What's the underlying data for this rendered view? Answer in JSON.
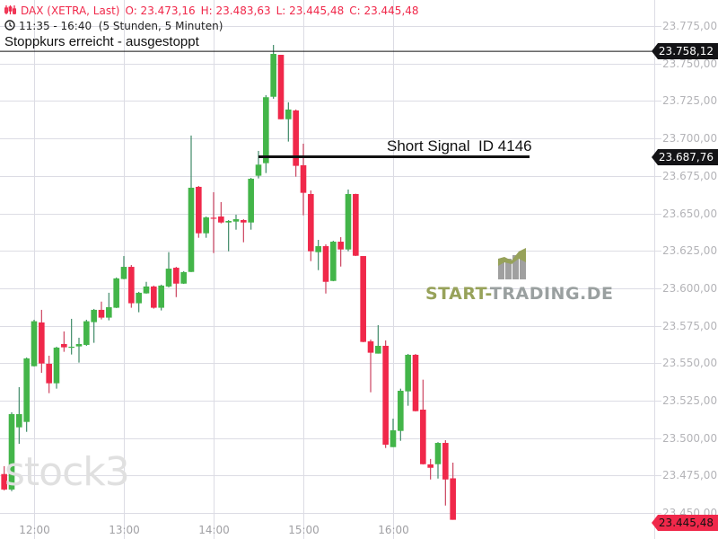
{
  "header": {
    "symbol": "DAX (XETRA, Last)",
    "open": "O: 23.473,16",
    "high": "H: 23.483,63",
    "low": "L: 23.445,48",
    "close": "C: 23.445,48",
    "time_range": "11:35 - 16:40",
    "interval": "(5 Stunden, 5 Minuten)"
  },
  "annotations": {
    "stop": {
      "label": "Stoppkurs erreicht - ausgestoppt",
      "price": 23758.12,
      "price_label": "23.758,12"
    },
    "signal": {
      "label": "Short Signal  ID 4146",
      "price": 23687.76,
      "price_label": "23.687,76"
    },
    "last": {
      "price": 23445.48,
      "price_label": "23.445,48"
    }
  },
  "logos": {
    "stock3": "stock3",
    "start_trading_a": "START-",
    "start_trading_b": "TRADING.DE"
  },
  "colors": {
    "up": "#43b549",
    "down": "#f0284a",
    "up_wick": "#3f8a68",
    "down_wick": "#cc4460",
    "grid": "#dcdce4",
    "text_axis": "#b4b4b8",
    "tag_dark": "#131316",
    "tag_red": "#f0284a"
  },
  "chart_data": {
    "type": "candlestick",
    "title": "",
    "interval": "5 min",
    "ylim": [
      23450,
      23775
    ],
    "yticks": [
      "23.775,00",
      "23.750,00",
      "23.725,00",
      "23.700,00",
      "23.675,00",
      "23.650,00",
      "23.625,00",
      "23.600,00",
      "23.575,00",
      "23.550,00",
      "23.525,00",
      "23.500,00",
      "23.475,00",
      "23.450,00"
    ],
    "ytick_values": [
      23775,
      23750,
      23725,
      23700,
      23675,
      23650,
      23625,
      23600,
      23575,
      23550,
      23525,
      23500,
      23475,
      23450
    ],
    "xticks": [
      "12:00",
      "13:00",
      "14:00",
      "15:00",
      "16:00"
    ],
    "grid": true,
    "candles": [
      {
        "t": "11:40",
        "o": 23476.0,
        "h": 23481.3,
        "l": 23465.1,
        "c": 23465.7
      },
      {
        "t": "11:45",
        "o": 23465.7,
        "h": 23517.2,
        "l": 23464.6,
        "c": 23516.0
      },
      {
        "t": "11:50",
        "o": 23507.2,
        "h": 23534.0,
        "l": 23496.2,
        "c": 23516.0
      },
      {
        "t": "11:55",
        "o": 23510.8,
        "h": 23553.8,
        "l": 23504.2,
        "c": 23553.2
      },
      {
        "t": "12:00",
        "o": 23548.0,
        "h": 23579.0,
        "l": 23547.8,
        "c": 23578.0
      },
      {
        "t": "12:05",
        "o": 23577.2,
        "h": 23585.6,
        "l": 23543.6,
        "c": 23549.8
      },
      {
        "t": "12:10",
        "o": 23549.6,
        "h": 23555.0,
        "l": 23530.0,
        "c": 23536.6
      },
      {
        "t": "12:15",
        "o": 23536.6,
        "h": 23561.0,
        "l": 23533.0,
        "c": 23560.4
      },
      {
        "t": "12:20",
        "o": 23562.8,
        "h": 23571.2,
        "l": 23557.6,
        "c": 23560.6
      },
      {
        "t": "12:25",
        "o": 23560.6,
        "h": 23579.6,
        "l": 23555.8,
        "c": 23561.0
      },
      {
        "t": "12:30",
        "o": 23561.2,
        "h": 23567.0,
        "l": 23550.4,
        "c": 23562.8
      },
      {
        "t": "12:35",
        "o": 23562.2,
        "h": 23579.0,
        "l": 23561.6,
        "c": 23578.0
      },
      {
        "t": "12:40",
        "o": 23577.4,
        "h": 23586.2,
        "l": 23563.6,
        "c": 23585.6
      },
      {
        "t": "12:45",
        "o": 23585.6,
        "h": 23591.1,
        "l": 23579.2,
        "c": 23580.4
      },
      {
        "t": "12:50",
        "o": 23580.4,
        "h": 23597.0,
        "l": 23578.6,
        "c": 23587.4
      },
      {
        "t": "12:55",
        "o": 23587.0,
        "h": 23607.2,
        "l": 23586.8,
        "c": 23606.6
      },
      {
        "t": "13:00",
        "o": 23606.2,
        "h": 23621.5,
        "l": 23606.0,
        "c": 23614.3
      },
      {
        "t": "13:05",
        "o": 23614.3,
        "h": 23615.5,
        "l": 23587.0,
        "c": 23590.0
      },
      {
        "t": "13:10",
        "o": 23590.0,
        "h": 23597.6,
        "l": 23584.0,
        "c": 23597.0
      },
      {
        "t": "13:15",
        "o": 23596.6,
        "h": 23604.3,
        "l": 23596.4,
        "c": 23601.2
      },
      {
        "t": "13:20",
        "o": 23601.2,
        "h": 23601.8,
        "l": 23586.4,
        "c": 23587.0
      },
      {
        "t": "13:25",
        "o": 23587.0,
        "h": 23602.4,
        "l": 23585.2,
        "c": 23601.8
      },
      {
        "t": "13:30",
        "o": 23601.2,
        "h": 23624.1,
        "l": 23600.6,
        "c": 23613.1
      },
      {
        "t": "13:35",
        "o": 23613.7,
        "h": 23614.3,
        "l": 23594.1,
        "c": 23603.1
      },
      {
        "t": "13:40",
        "o": 23603.1,
        "h": 23611.4,
        "l": 23602.9,
        "c": 23610.8
      },
      {
        "t": "13:45",
        "o": 23610.9,
        "h": 23701.9,
        "l": 23610.8,
        "c": 23667.1
      },
      {
        "t": "13:50",
        "o": 23667.7,
        "h": 23668.3,
        "l": 23633.7,
        "c": 23636.7
      },
      {
        "t": "13:55",
        "o": 23636.7,
        "h": 23647.9,
        "l": 23633.7,
        "c": 23647.3
      },
      {
        "t": "14:00",
        "o": 23647.1,
        "h": 23664.1,
        "l": 23623.5,
        "c": 23646.9
      },
      {
        "t": "14:05",
        "o": 23647.9,
        "h": 23657.5,
        "l": 23643.3,
        "c": 23643.9
      },
      {
        "t": "14:10",
        "o": 23643.9,
        "h": 23645.5,
        "l": 23624.7,
        "c": 23644.9
      },
      {
        "t": "14:15",
        "o": 23644.5,
        "h": 23649.1,
        "l": 23639.1,
        "c": 23646.1
      },
      {
        "t": "14:20",
        "o": 23645.5,
        "h": 23646.1,
        "l": 23630.7,
        "c": 23643.9
      },
      {
        "t": "14:25",
        "o": 23643.9,
        "h": 23673.7,
        "l": 23639.1,
        "c": 23673.1
      },
      {
        "t": "14:30",
        "o": 23675.1,
        "h": 23691.7,
        "l": 23673.3,
        "c": 23682.5
      },
      {
        "t": "14:35",
        "o": 23683.5,
        "h": 23728.9,
        "l": 23676.9,
        "c": 23727.5
      },
      {
        "t": "14:40",
        "o": 23727.8,
        "h": 23762.4,
        "l": 23726.5,
        "c": 23756.4
      },
      {
        "t": "14:45",
        "o": 23755.8,
        "h": 23755.8,
        "l": 23712.8,
        "c": 23712.8
      },
      {
        "t": "14:50",
        "o": 23712.8,
        "h": 23724.1,
        "l": 23697.9,
        "c": 23719.3
      },
      {
        "t": "14:55",
        "o": 23718.7,
        "h": 23719.3,
        "l": 23674.5,
        "c": 23681.7
      },
      {
        "t": "15:00",
        "o": 23682.1,
        "h": 23696.5,
        "l": 23648.7,
        "c": 23663.7
      },
      {
        "t": "15:05",
        "o": 23662.9,
        "h": 23665.3,
        "l": 23618.1,
        "c": 23624.7
      },
      {
        "t": "15:10",
        "o": 23624.1,
        "h": 23632.3,
        "l": 23612.1,
        "c": 23628.1
      },
      {
        "t": "15:15",
        "o": 23628.1,
        "h": 23629.3,
        "l": 23596.5,
        "c": 23604.3
      },
      {
        "t": "15:20",
        "o": 23604.9,
        "h": 23631.7,
        "l": 23604.7,
        "c": 23631.1
      },
      {
        "t": "15:25",
        "o": 23631.1,
        "h": 23634.1,
        "l": 23614.5,
        "c": 23625.9
      },
      {
        "t": "15:30",
        "o": 23625.9,
        "h": 23665.9,
        "l": 23624.7,
        "c": 23662.9
      },
      {
        "t": "15:35",
        "o": 23662.9,
        "h": 23663.1,
        "l": 23621.5,
        "c": 23621.7
      },
      {
        "t": "15:40",
        "o": 23621.5,
        "h": 23621.5,
        "l": 23564.0,
        "c": 23564.2
      },
      {
        "t": "15:45",
        "o": 23564.6,
        "h": 23565.8,
        "l": 23530.6,
        "c": 23557.0
      },
      {
        "t": "15:50",
        "o": 23556.4,
        "h": 23575.4,
        "l": 23556.4,
        "c": 23561.6
      },
      {
        "t": "15:55",
        "o": 23561.6,
        "h": 23565.2,
        "l": 23493.4,
        "c": 23495.6
      },
      {
        "t": "16:00",
        "o": 23494.0,
        "h": 23513.0,
        "l": 23494.0,
        "c": 23505.2
      },
      {
        "t": "16:05",
        "o": 23504.8,
        "h": 23533.0,
        "l": 23498.2,
        "c": 23531.6
      },
      {
        "t": "16:10",
        "o": 23531.2,
        "h": 23556.2,
        "l": 23521.6,
        "c": 23555.6
      },
      {
        "t": "16:15",
        "o": 23555.6,
        "h": 23556.2,
        "l": 23517.8,
        "c": 23518.0
      },
      {
        "t": "16:20",
        "o": 23519.0,
        "h": 23539.0,
        "l": 23482.4,
        "c": 23482.6
      },
      {
        "t": "16:25",
        "o": 23482.5,
        "h": 23486.1,
        "l": 23472.4,
        "c": 23480.2
      },
      {
        "t": "16:30",
        "o": 23482.6,
        "h": 23497.3,
        "l": 23473.0,
        "c": 23496.8
      },
      {
        "t": "16:35",
        "o": 23496.8,
        "h": 23498.6,
        "l": 23455.0,
        "c": 23472.4
      },
      {
        "t": "16:40",
        "o": 23473.16,
        "h": 23483.63,
        "l": 23445.48,
        "c": 23445.48
      }
    ]
  }
}
